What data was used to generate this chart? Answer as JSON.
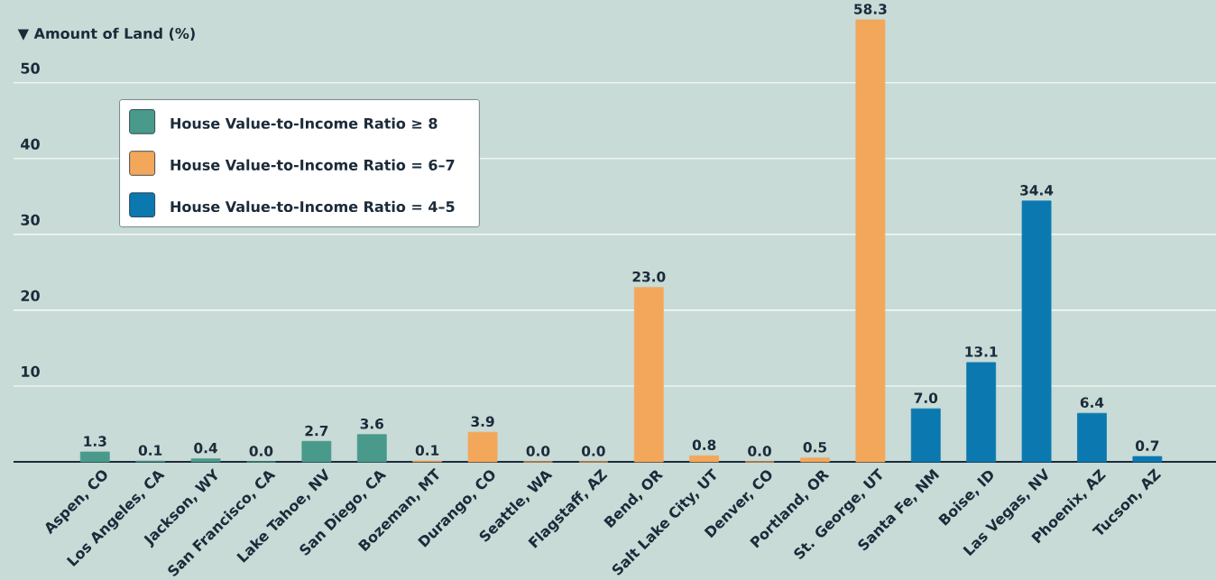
{
  "chart_data": {
    "type": "bar",
    "ylabel": "▼ Amount of Land (%)",
    "categories": [
      "Aspen, CO",
      "Los Angeles, CA",
      "Jackson, WY",
      "San Francisco, CA",
      "Lake Tahoe, NV",
      "San Diego, CA",
      "Bozeman, MT",
      "Durango, CO",
      "Seattle, WA",
      "Flagstaff, AZ",
      "Bend, OR",
      "Salt Lake City, UT",
      "Denver, CO",
      "Portland, OR",
      "St. George, UT",
      "Santa Fe, NM",
      "Boise, ID",
      "Las Vegas, NV",
      "Phoenix, AZ",
      "Tucson, AZ"
    ],
    "series": [
      {
        "name": "House Value-to-Income Ratio ≥ 8",
        "color": "#4a9a8b",
        "values": [
          1.3,
          0.1,
          0.4,
          0.0,
          2.7,
          3.6,
          null,
          null,
          null,
          null,
          null,
          null,
          null,
          null,
          null,
          null,
          null,
          null,
          null,
          null
        ],
        "value_labels": [
          "1.3",
          "0.1",
          "0.4",
          "0.0",
          "2.7",
          "3.6",
          null,
          null,
          null,
          null,
          null,
          null,
          null,
          null,
          null,
          null,
          null,
          null,
          null,
          null
        ]
      },
      {
        "name": "House Value-to-Income Ratio = 6–7",
        "color": "#f2a75b",
        "values": [
          null,
          null,
          null,
          null,
          null,
          null,
          0.1,
          3.9,
          0.0,
          0.0,
          23.0,
          0.8,
          0.0,
          0.5,
          58.3,
          null,
          null,
          null,
          null,
          null
        ],
        "value_labels": [
          null,
          null,
          null,
          null,
          null,
          null,
          "0.1",
          "3.9",
          "0.0",
          "0.0",
          "23.0",
          "0.8",
          "0.0",
          "0.5",
          "58.3",
          null,
          null,
          null,
          null,
          null
        ]
      },
      {
        "name": "House Value-to-Income Ratio = 4–5",
        "color": "#0b79b0",
        "values": [
          null,
          null,
          null,
          null,
          null,
          null,
          null,
          null,
          null,
          null,
          null,
          null,
          null,
          null,
          null,
          7.0,
          13.1,
          34.4,
          6.4,
          0.7
        ],
        "value_labels": [
          null,
          null,
          null,
          null,
          null,
          null,
          null,
          null,
          null,
          null,
          null,
          null,
          null,
          null,
          null,
          "7.0",
          "13.1",
          "34.4",
          "6.4",
          "0.7"
        ]
      }
    ],
    "ylim": [
      0,
      58.3
    ],
    "yticks": [
      10,
      20,
      30,
      40,
      50
    ],
    "grid": "y",
    "legend": "top left"
  }
}
